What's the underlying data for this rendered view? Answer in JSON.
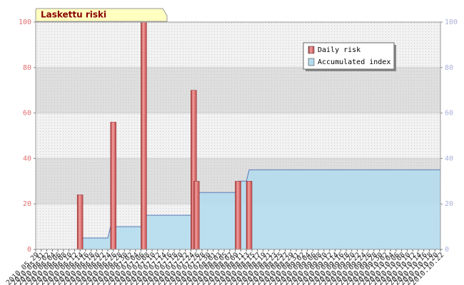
{
  "chart_data": {
    "type": "bar_area",
    "title": "Laskettu riski",
    "categories": [
      "2010.05.29",
      null,
      "2010.05.31",
      null,
      "2010.06.02",
      null,
      "2010.06.04",
      null,
      "2010.06.06",
      null,
      "2010.06.08",
      null,
      "2010.06.10",
      null,
      "2010.06.12",
      null,
      "2010.06.14",
      null,
      "2010.06.16",
      null,
      "2010.06.18",
      null,
      "2010.06.20",
      null,
      "2010.06.22",
      null,
      "2010.06.24",
      null,
      "2010.06.26",
      null,
      "2010.06.28",
      null,
      "2010.06.30",
      null,
      "2010.07.02",
      null,
      "2010.07.04",
      null,
      "2010.07.06",
      null,
      "2010.07.08",
      null,
      "2010.07.10",
      null,
      "2010.07.12",
      null,
      "2010.07.14",
      null,
      "2010.07.16",
      null,
      "2010.07.18",
      null,
      "2010.07.20",
      null,
      "2010.07.22",
      null,
      "2010.07.24",
      null,
      "2010.07.26",
      null,
      "2010.07.28",
      null,
      "2010.07.30",
      null,
      "2010.08.01",
      null,
      "2010.08.03",
      null,
      "2010.08.05",
      null,
      "2010.08.07",
      null,
      "2010.08.09",
      null,
      "2010.08.11",
      null,
      "2010.08.13",
      null,
      "2010.08.15",
      null,
      "2010.08.17",
      null,
      "2010.08.19",
      null,
      "2010.08.21",
      null,
      "2010.08.23",
      null,
      "2010.08.25",
      null,
      "2010.08.27",
      null,
      "2010.08.29",
      null,
      "2010.08.31",
      null,
      "2010.09.02",
      null,
      "2010.09.04",
      null,
      "2010.09.06",
      null,
      "2010.09.08",
      null,
      "2010.09.10",
      null,
      "2010.09.12",
      null,
      "2010.09.14",
      null,
      "2010.09.16",
      null,
      "2010.09.18",
      null,
      "2010.09.20",
      null,
      "2010.09.22",
      null,
      "2010.09.24",
      null,
      "2010.09.26",
      null,
      "2010.09.28",
      null,
      "2010.09.30",
      null,
      "2010.10.02",
      null,
      "2010.10.04",
      null,
      "2010.10.06",
      null,
      "2010.10.08",
      null,
      "2010.10.10",
      null,
      "2010.10.12",
      null,
      "2010.10.14",
      null,
      "2010.10.16",
      null,
      "2010.10.18",
      null,
      "2010.10.20",
      null,
      "2010.10.22"
    ],
    "series": [
      {
        "name": "Daily risk",
        "color": "#e06666",
        "values": [
          0,
          0,
          0,
          0,
          0,
          0,
          0,
          0,
          0,
          0,
          0,
          0,
          0,
          0,
          0,
          0,
          24,
          0,
          0,
          0,
          0,
          0,
          0,
          0,
          0,
          0,
          0,
          0,
          56,
          0,
          0,
          0,
          0,
          0,
          0,
          0,
          0,
          0,
          0,
          100,
          0,
          0,
          0,
          0,
          0,
          0,
          0,
          0,
          0,
          0,
          0,
          0,
          0,
          0,
          0,
          0,
          0,
          70,
          30,
          0,
          0,
          0,
          0,
          0,
          0,
          0,
          0,
          0,
          0,
          0,
          0,
          0,
          0,
          30,
          0,
          0,
          0,
          30,
          0,
          0,
          0,
          0,
          0,
          0,
          0,
          0,
          0,
          0,
          0,
          0,
          0,
          0,
          0,
          0,
          0,
          0,
          0,
          0,
          0,
          0,
          0,
          0,
          0,
          0,
          0,
          0,
          0,
          0,
          0,
          0,
          0,
          0,
          0,
          0,
          0,
          0,
          0,
          0,
          0,
          0,
          0,
          0,
          0,
          0,
          0,
          0,
          0,
          0,
          0,
          0,
          0,
          0,
          0,
          0,
          0,
          0,
          0,
          0,
          0,
          0,
          0,
          0,
          0,
          0,
          0,
          0,
          0
        ]
      },
      {
        "name": "Accumulated index",
        "color": "#b3dcee",
        "axis": "y2",
        "values": [
          0,
          0,
          0,
          0,
          0,
          0,
          0,
          0,
          0,
          0,
          0,
          0,
          0,
          0,
          0,
          0,
          0,
          5,
          5,
          5,
          5,
          5,
          5,
          5,
          5,
          5,
          5,
          10,
          10,
          10,
          10,
          10,
          10,
          10,
          10,
          10,
          10,
          10,
          10,
          15,
          15,
          15,
          15,
          15,
          15,
          15,
          15,
          15,
          15,
          15,
          15,
          15,
          15,
          15,
          15,
          15,
          15,
          20,
          25,
          25,
          25,
          25,
          25,
          25,
          25,
          25,
          25,
          25,
          25,
          25,
          25,
          25,
          25,
          30,
          30,
          30,
          30,
          35,
          35,
          35,
          35,
          35,
          35,
          35,
          35,
          35,
          35,
          35,
          35,
          35,
          35,
          35,
          35,
          35,
          35,
          35,
          35,
          35,
          35,
          35,
          35,
          35,
          35,
          35,
          35,
          35,
          35,
          35,
          35,
          35,
          35,
          35,
          35,
          35,
          35,
          35,
          35,
          35,
          35,
          35,
          35,
          35,
          35,
          35,
          35,
          35,
          35,
          35,
          35,
          35,
          35,
          35,
          35,
          35,
          35,
          35,
          35,
          35,
          35,
          35,
          35,
          35,
          35,
          35,
          35,
          35,
          35
        ]
      }
    ],
    "ylim": [
      0,
      100
    ],
    "yticks": [
      0,
      20,
      40,
      60,
      80,
      100
    ],
    "y2lim": [
      0,
      100
    ],
    "y2ticks": [
      0,
      20,
      40,
      60,
      80,
      100
    ],
    "grid": true,
    "legend": "upper right"
  }
}
